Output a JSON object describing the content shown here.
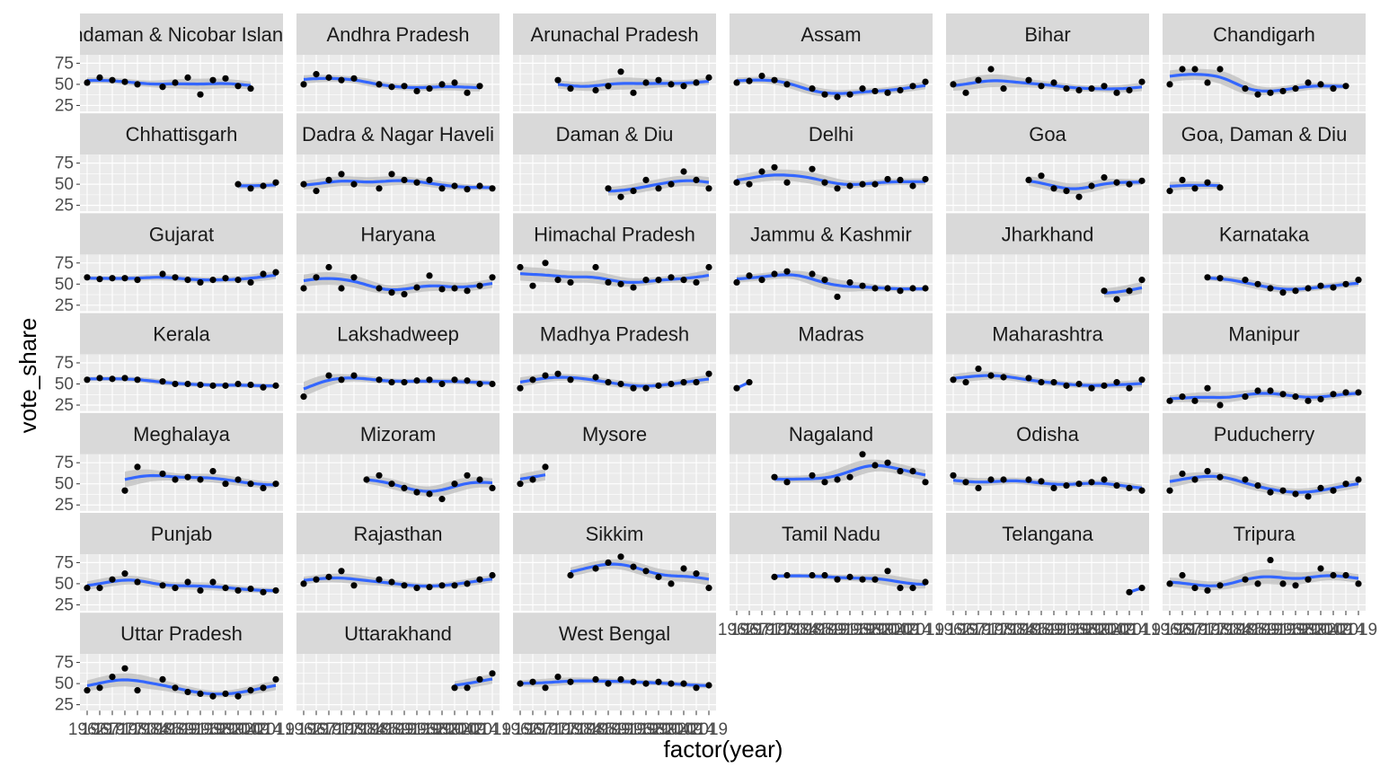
{
  "chart_data": {
    "type": "scatter",
    "facet_layout": "wrap",
    "xlabel": "factor(year)",
    "ylabel": "vote_share",
    "ylim": [
      18,
      85
    ],
    "y_ticks": [
      25,
      50,
      75
    ],
    "years": [
      "1962",
      "1967",
      "1971",
      "1977",
      "1980",
      "1984",
      "1985",
      "1989",
      "1991",
      "1996",
      "1998",
      "1999",
      "2004",
      "2009",
      "2014",
      "2019"
    ],
    "x_tick_labels": [
      "1962",
      "1967",
      "1971",
      "1977",
      "1980",
      "1984",
      "1985",
      "1989",
      "1991",
      "1996",
      "1998",
      "1999",
      "2004",
      "2009",
      "2014",
      "2019"
    ],
    "overlay": "loess smooth with confidence band",
    "colors": {
      "smooth": "#3366FF",
      "band": "#bdbdbd",
      "point": "#000000",
      "panel_bg": "#EBEBEB",
      "strip_bg": "#D9D9D9",
      "grid": "#ffffff"
    },
    "panels": [
      {
        "title": "Andaman & Nicobar Islands",
        "values": [
          52,
          58,
          55,
          53,
          50,
          null,
          47,
          52,
          58,
          38,
          55,
          57,
          48,
          45,
          null,
          null
        ]
      },
      {
        "title": "Andhra Pradesh",
        "values": [
          50,
          62,
          58,
          55,
          57,
          null,
          50,
          47,
          48,
          42,
          45,
          50,
          52,
          40,
          48,
          null
        ]
      },
      {
        "title": "Arunachal Pradesh",
        "values": [
          null,
          null,
          null,
          55,
          45,
          null,
          43,
          48,
          65,
          40,
          52,
          55,
          50,
          48,
          52,
          58
        ]
      },
      {
        "title": "Assam",
        "values": [
          52,
          54,
          60,
          55,
          50,
          null,
          45,
          38,
          35,
          38,
          45,
          42,
          40,
          43,
          48,
          53
        ]
      },
      {
        "title": "Bihar",
        "values": [
          50,
          40,
          55,
          68,
          45,
          null,
          55,
          48,
          52,
          45,
          43,
          45,
          48,
          40,
          43,
          53
        ]
      },
      {
        "title": "Chandigarh",
        "values": [
          50,
          68,
          68,
          52,
          68,
          null,
          45,
          38,
          40,
          42,
          45,
          52,
          50,
          45,
          48,
          null
        ]
      },
      {
        "title": "Chhattisgarh",
        "values": [
          null,
          null,
          null,
          null,
          null,
          null,
          null,
          null,
          null,
          null,
          null,
          null,
          50,
          45,
          48,
          52
        ]
      },
      {
        "title": "Dadra & Nagar Haveli",
        "values": [
          50,
          42,
          55,
          62,
          50,
          null,
          45,
          62,
          55,
          52,
          55,
          45,
          48,
          44,
          48,
          45
        ]
      },
      {
        "title": "Daman & Diu",
        "values": [
          null,
          null,
          null,
          null,
          null,
          null,
          null,
          45,
          35,
          42,
          55,
          45,
          50,
          65,
          55,
          45
        ]
      },
      {
        "title": "Delhi",
        "values": [
          52,
          50,
          65,
          70,
          52,
          null,
          68,
          52,
          45,
          48,
          50,
          50,
          56,
          55,
          48,
          56
        ]
      },
      {
        "title": "Goa",
        "values": [
          null,
          null,
          null,
          null,
          null,
          null,
          55,
          60,
          45,
          42,
          35,
          48,
          58,
          52,
          50,
          54
        ]
      },
      {
        "title": "Goa, Daman & Diu",
        "values": [
          42,
          55,
          45,
          52,
          46,
          null,
          null,
          null,
          null,
          null,
          null,
          null,
          null,
          null,
          null,
          null
        ]
      },
      {
        "title": "Gujarat",
        "values": [
          58,
          56,
          57,
          57,
          55,
          null,
          62,
          58,
          55,
          52,
          55,
          57,
          55,
          52,
          62,
          64
        ]
      },
      {
        "title": "Haryana",
        "values": [
          45,
          58,
          70,
          45,
          58,
          null,
          45,
          40,
          38,
          46,
          60,
          44,
          45,
          42,
          48,
          58
        ]
      },
      {
        "title": "Himachal Pradesh",
        "values": [
          70,
          48,
          75,
          55,
          52,
          null,
          70,
          52,
          50,
          46,
          55,
          55,
          58,
          55,
          52,
          70
        ]
      },
      {
        "title": "Jammu & Kashmir",
        "values": [
          52,
          60,
          55,
          62,
          65,
          null,
          62,
          55,
          35,
          52,
          48,
          45,
          45,
          42,
          45,
          45
        ]
      },
      {
        "title": "Jharkhand",
        "values": [
          null,
          null,
          null,
          null,
          null,
          null,
          null,
          null,
          null,
          null,
          null,
          null,
          42,
          32,
          42,
          55
        ]
      },
      {
        "title": "Karnataka",
        "values": [
          null,
          null,
          null,
          58,
          57,
          null,
          55,
          50,
          45,
          40,
          42,
          45,
          48,
          46,
          50,
          55
        ]
      },
      {
        "title": "Kerala",
        "values": [
          55,
          57,
          56,
          57,
          55,
          null,
          53,
          50,
          50,
          49,
          48,
          48,
          50,
          49,
          46,
          48
        ]
      },
      {
        "title": "Lakshadweep",
        "values": [
          35,
          null,
          60,
          55,
          60,
          null,
          55,
          52,
          52,
          54,
          55,
          50,
          55,
          54,
          50,
          50
        ]
      },
      {
        "title": "Madhya Pradesh",
        "values": [
          45,
          55,
          60,
          62,
          55,
          null,
          58,
          52,
          50,
          45,
          45,
          48,
          50,
          52,
          52,
          62
        ]
      },
      {
        "title": "Madras",
        "values": [
          45,
          52,
          null,
          null,
          null,
          null,
          null,
          null,
          null,
          null,
          null,
          null,
          null,
          null,
          null,
          null
        ]
      },
      {
        "title": "Maharashtra",
        "values": [
          55,
          52,
          68,
          60,
          58,
          null,
          57,
          52,
          52,
          48,
          50,
          45,
          48,
          52,
          45,
          55
        ]
      },
      {
        "title": "Manipur",
        "values": [
          30,
          35,
          30,
          45,
          25,
          null,
          35,
          42,
          42,
          38,
          35,
          30,
          32,
          38,
          40,
          40
        ]
      },
      {
        "title": "Meghalaya",
        "values": [
          null,
          null,
          null,
          42,
          70,
          null,
          62,
          55,
          58,
          55,
          65,
          50,
          55,
          50,
          45,
          50
        ]
      },
      {
        "title": "Mizoram",
        "values": [
          null,
          null,
          null,
          null,
          null,
          55,
          60,
          50,
          45,
          40,
          38,
          32,
          50,
          60,
          55,
          45
        ]
      },
      {
        "title": "Mysore",
        "values": [
          50,
          55,
          70,
          null,
          null,
          null,
          null,
          null,
          null,
          null,
          null,
          null,
          null,
          null,
          null,
          null
        ]
      },
      {
        "title": "Nagaland",
        "values": [
          null,
          null,
          null,
          58,
          52,
          null,
          60,
          52,
          55,
          58,
          85,
          72,
          75,
          65,
          65,
          52
        ]
      },
      {
        "title": "Odisha",
        "values": [
          60,
          52,
          45,
          55,
          55,
          null,
          55,
          53,
          45,
          48,
          50,
          52,
          55,
          48,
          45,
          42
        ]
      },
      {
        "title": "Puducherry",
        "values": [
          42,
          62,
          55,
          65,
          58,
          null,
          55,
          48,
          40,
          42,
          38,
          35,
          45,
          42,
          50,
          55
        ]
      },
      {
        "title": "Punjab",
        "values": [
          45,
          45,
          55,
          62,
          52,
          null,
          48,
          45,
          52,
          42,
          52,
          45,
          42,
          44,
          40,
          42
        ]
      },
      {
        "title": "Rajasthan",
        "values": [
          50,
          55,
          58,
          65,
          48,
          null,
          55,
          52,
          48,
          45,
          46,
          48,
          48,
          50,
          55,
          60
        ]
      },
      {
        "title": "Sikkim",
        "values": [
          null,
          null,
          null,
          null,
          60,
          null,
          68,
          75,
          82,
          70,
          65,
          58,
          50,
          68,
          62,
          45
        ]
      },
      {
        "title": "Tamil Nadu",
        "values": [
          null,
          null,
          null,
          58,
          60,
          null,
          60,
          60,
          55,
          58,
          55,
          55,
          65,
          45,
          45,
          52
        ]
      },
      {
        "title": "Telangana",
        "values": [
          null,
          null,
          null,
          null,
          null,
          null,
          null,
          null,
          null,
          null,
          null,
          null,
          null,
          null,
          40,
          45
        ]
      },
      {
        "title": "Tripura",
        "values": [
          50,
          60,
          45,
          42,
          48,
          null,
          55,
          50,
          78,
          50,
          48,
          55,
          68,
          60,
          60,
          50
        ]
      },
      {
        "title": "Uttar Pradesh",
        "values": [
          42,
          45,
          58,
          68,
          42,
          null,
          55,
          45,
          40,
          38,
          35,
          38,
          35,
          42,
          45,
          55
        ]
      },
      {
        "title": "Uttarakhand",
        "values": [
          null,
          null,
          null,
          null,
          null,
          null,
          null,
          null,
          null,
          null,
          null,
          null,
          45,
          45,
          55,
          62
        ]
      },
      {
        "title": "West Bengal",
        "values": [
          50,
          52,
          45,
          58,
          52,
          null,
          55,
          50,
          55,
          52,
          50,
          52,
          50,
          50,
          45,
          48
        ]
      }
    ]
  }
}
